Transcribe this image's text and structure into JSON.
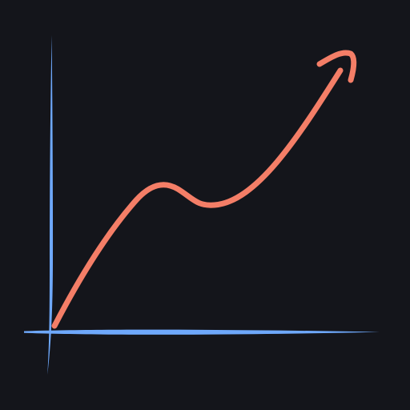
{
  "icon": {
    "name": "growth-chart-icon",
    "background_color": "#14151b",
    "axis_color": "#6ea8fb",
    "curve_color": "#f47e67"
  }
}
